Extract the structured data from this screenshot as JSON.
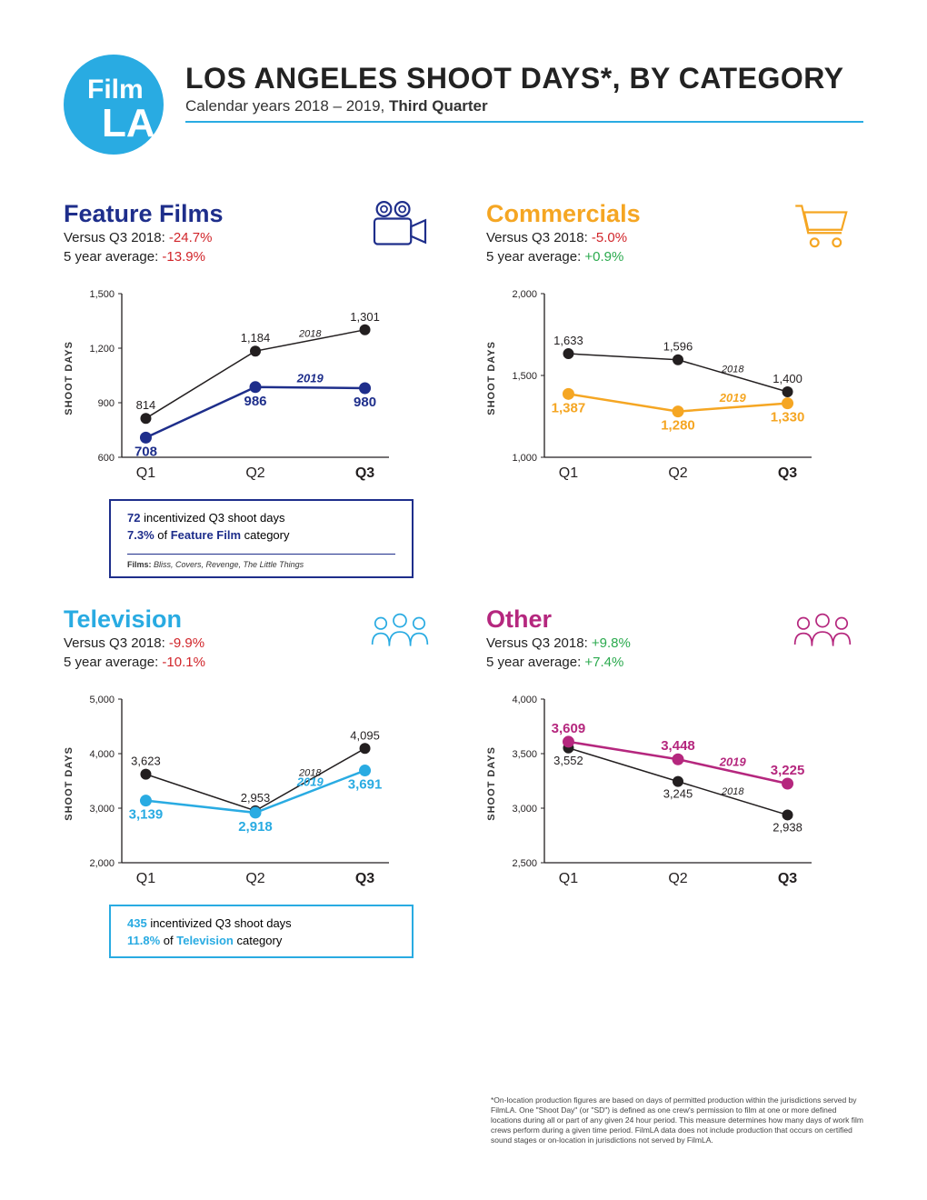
{
  "logo": {
    "text1": "Film",
    "text2": "LA",
    "bg": "#29abe2",
    "fg": "#ffffff"
  },
  "header": {
    "title": "LOS ANGELES SHOOT DAYS*, BY CATEGORY",
    "subtitle_pre": "Calendar years 2018 – 2019, ",
    "subtitle_bold": "Third Quarter",
    "rule_color": "#29abe2"
  },
  "panels": {
    "feature": {
      "title": "Feature Films",
      "title_color": "#1e2e8b",
      "vs_label": "Versus Q3 2018: ",
      "vs_value": "-24.7%",
      "vs_class": "neg",
      "avg_label": "5 year average: ",
      "avg_value": "-13.9%",
      "avg_class": "neg",
      "chart": {
        "categories": [
          "Q1",
          "Q2",
          "Q3"
        ],
        "ylabel": "SHOOT DAYS",
        "ymin": 600,
        "ymax": 1500,
        "ystep": 300,
        "s2018_color": "#231f20",
        "s2019_color": "#1e2e8b",
        "s2018": [
          814,
          1184,
          1301
        ],
        "s2019": [
          708,
          986,
          980
        ],
        "label_2018": "2018",
        "label_2019": "2019"
      },
      "callout": {
        "border": "#1e2e8b",
        "line1_num": "72",
        "line1_rest": " incentivized Q3 shoot days",
        "line2_num": "7.3%",
        "line2_rest_pre": " of ",
        "line2_rest_cat": "Feature Film",
        "line2_rest_post": " category",
        "films_label": "Films: ",
        "films_list": "Bliss, Covers, Revenge, The Little Things"
      }
    },
    "commercials": {
      "title": "Commercials",
      "title_color": "#f5a623",
      "vs_label": "Versus Q3 2018: ",
      "vs_value": "-5.0%",
      "vs_class": "neg",
      "avg_label": "5 year average: ",
      "avg_value": "+0.9%",
      "avg_class": "pos",
      "chart": {
        "categories": [
          "Q1",
          "Q2",
          "Q3"
        ],
        "ylabel": "SHOOT DAYS",
        "ymin": 1000,
        "ymax": 2000,
        "ystep": 500,
        "s2018_color": "#231f20",
        "s2019_color": "#f5a623",
        "s2018": [
          1633,
          1596,
          1400
        ],
        "s2019": [
          1387,
          1280,
          1330
        ],
        "label_2018": "2018",
        "label_2019": "2019"
      }
    },
    "television": {
      "title": "Television",
      "title_color": "#29abe2",
      "vs_label": "Versus Q3 2018: ",
      "vs_value": "-9.9%",
      "vs_class": "neg",
      "avg_label": "5 year average: ",
      "avg_value": "-10.1%",
      "avg_class": "neg",
      "chart": {
        "categories": [
          "Q1",
          "Q2",
          "Q3"
        ],
        "ylabel": "SHOOT DAYS",
        "ymin": 2000,
        "ymax": 5000,
        "ystep": 1000,
        "s2018_color": "#231f20",
        "s2019_color": "#29abe2",
        "s2018": [
          3623,
          2953,
          4095
        ],
        "s2019": [
          3139,
          2918,
          3691
        ],
        "label_2018": "2018",
        "label_2019": "2019"
      },
      "callout": {
        "border": "#29abe2",
        "line1_num": "435",
        "line1_rest": " incentivized Q3 shoot days",
        "line2_num": "11.8%",
        "line2_rest_pre": " of ",
        "line2_rest_cat": "Television",
        "line2_rest_post": " category"
      }
    },
    "other": {
      "title": "Other",
      "title_color": "#b5277e",
      "vs_label": "Versus Q3 2018: ",
      "vs_value": "+9.8%",
      "vs_class": "pos",
      "avg_label": "5 year average: ",
      "avg_value": "+7.4%",
      "avg_class": "pos",
      "chart": {
        "categories": [
          "Q1",
          "Q2",
          "Q3"
        ],
        "ylabel": "SHOOT DAYS",
        "ymin": 2500,
        "ymax": 4000,
        "ystep": 500,
        "s2018_color": "#231f20",
        "s2019_color": "#b5277e",
        "s2018": [
          3552,
          3245,
          2938
        ],
        "s2019": [
          3609,
          3448,
          3225
        ],
        "label_2018": "2018",
        "label_2019": "2019"
      }
    }
  },
  "footnote": "*On-location production figures are based on days of permitted production within the jurisdictions served by FilmLA. One \"Shoot Day\" (or \"SD\") is defined as one crew's permission to film at one or more defined locations during all or part of any given 24 hour period. This measure determines how many days of work film crews perform during a given time period. FilmLA data does not include production that occurs on certified sound stages or on-location in jurisdictions not served by FilmLA."
}
